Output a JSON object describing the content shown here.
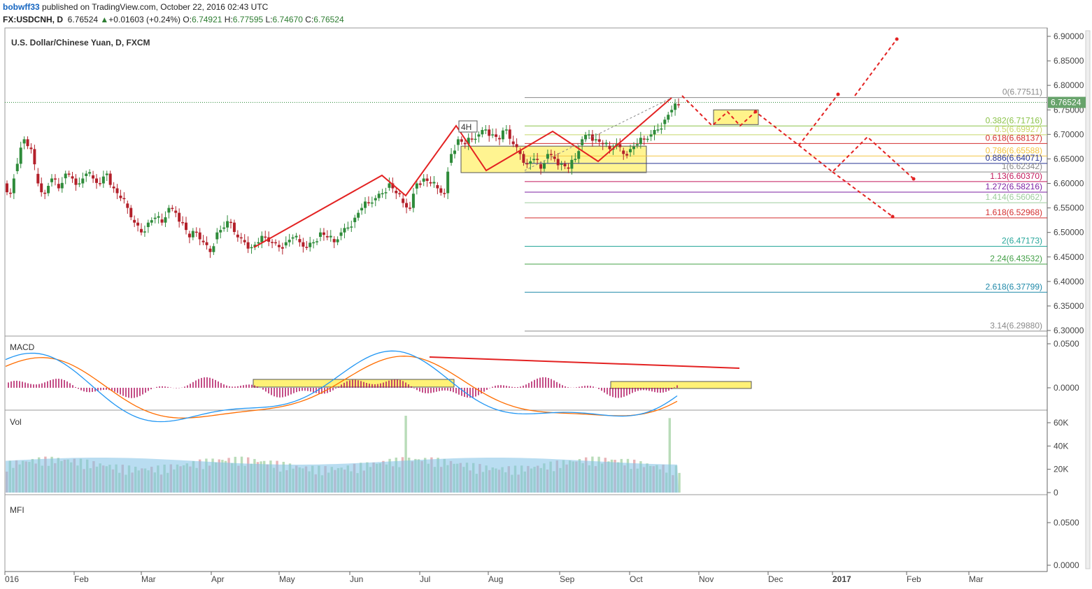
{
  "header": {
    "author": "bobwff33",
    "published": "published on TradingView.com, October 22, 2016 02:43 UTC",
    "symbol": "FX:USDCNH, D",
    "last": "6.76524",
    "change": "+0.01603 (+0.24%)",
    "open_label": "O:",
    "open": "6.74921",
    "high_label": "H:",
    "high": "6.77595",
    "low_label": "L:",
    "low": "6.74670",
    "close_label": "C:",
    "close": "6.76524"
  },
  "colors": {
    "up": "#2e8b3a",
    "down": "#b3202a",
    "axis": "#555555",
    "grid": "#e6e6e6",
    "red_line": "#e32222",
    "yellow_box": "#fff176",
    "macd": "#2196f3",
    "signal": "#ff6d00",
    "hist": "#b0125f"
  },
  "chart_data": [
    {
      "type": "candlestick",
      "title": "U.S. Dollar/Chinese Yuan, D, FXCM",
      "ylim": [
        6.29,
        6.91
      ],
      "y_ticks": [
        "6.90000",
        "6.85000",
        "6.80000",
        "6.75000",
        "6.70000",
        "6.65000",
        "6.60000",
        "6.55000",
        "6.50000",
        "6.45000",
        "6.40000",
        "6.35000",
        "6.30000"
      ],
      "x_ticks": [
        "016",
        "Feb",
        "Mar",
        "Apr",
        "May",
        "Jun",
        "Jul",
        "Aug",
        "Sep",
        "Oct",
        "Nov",
        "Dec",
        "2017",
        "Feb",
        "Mar"
      ],
      "last_price_label": "6.76524",
      "series_close": [
        6.58,
        6.64,
        6.69,
        6.67,
        6.6,
        6.58,
        6.61,
        6.59,
        6.62,
        6.61,
        6.6,
        6.62,
        6.61,
        6.6,
        6.62,
        6.59,
        6.57,
        6.55,
        6.52,
        6.5,
        6.52,
        6.53,
        6.52,
        6.55,
        6.54,
        6.52,
        6.49,
        6.5,
        6.48,
        6.46,
        6.5,
        6.51,
        6.52,
        6.49,
        6.48,
        6.47,
        6.48,
        6.49,
        6.48,
        6.47,
        6.48,
        6.49,
        6.48,
        6.47,
        6.48,
        6.5,
        6.49,
        6.48,
        6.5,
        6.51,
        6.53,
        6.55,
        6.56,
        6.57,
        6.58,
        6.6,
        6.58,
        6.56,
        6.55,
        6.6,
        6.61,
        6.6,
        6.59,
        6.58,
        6.66,
        6.69,
        6.68,
        6.69,
        6.7,
        6.71,
        6.7,
        6.69,
        6.71,
        6.68,
        6.66,
        6.64,
        6.65,
        6.63,
        6.66,
        6.65,
        6.64,
        6.63,
        6.65,
        6.69,
        6.7,
        6.69,
        6.68,
        6.67,
        6.68,
        6.66,
        6.67,
        6.68,
        6.69,
        6.7,
        6.71,
        6.73,
        6.75,
        6.76
      ],
      "fibonacci": [
        {
          "label": "0(6.77511)",
          "value": 6.77511,
          "color": "#8a8a8a"
        },
        {
          "label": "0.382(6.71716)",
          "value": 6.71716,
          "color": "#8bc34a"
        },
        {
          "label": "0.5(6.69927)",
          "value": 6.69927,
          "color": "#c8d86a"
        },
        {
          "label": "0.618(6.68137)",
          "value": 6.68137,
          "color": "#d32f2f"
        },
        {
          "label": "0.786(6.65588)",
          "value": 6.65588,
          "color": "#f4c542"
        },
        {
          "label": "0.886(6.64071)",
          "value": 6.64071,
          "color": "#283593"
        },
        {
          "label": "1(6.62342)",
          "value": 6.62342,
          "color": "#8a8a8a"
        },
        {
          "label": "1.13(6.60370)",
          "value": 6.6037,
          "color": "#c2185b"
        },
        {
          "label": "1.272(6.58216)",
          "value": 6.58216,
          "color": "#7b1fa2"
        },
        {
          "label": "1.414(6.56062)",
          "value": 6.56062,
          "color": "#9ccc9c"
        },
        {
          "label": "1.618(6.52968)",
          "value": 6.52968,
          "color": "#d32f2f"
        },
        {
          "label": "2(6.47173)",
          "value": 6.47173,
          "color": "#26a69a"
        },
        {
          "label": "2.24(6.43532)",
          "value": 6.43532,
          "color": "#43a047"
        },
        {
          "label": "2.618(6.37799)",
          "value": 6.37799,
          "color": "#1e88a8"
        },
        {
          "label": "3.14(6.29880)",
          "value": 6.2988,
          "color": "#8a8a8a"
        }
      ],
      "annotation": "4H"
    },
    {
      "type": "line",
      "title": "MACD",
      "ylim": [
        -0.04,
        0.06
      ],
      "y_ticks": [
        "0.0500",
        "0.0000"
      ]
    },
    {
      "type": "bar",
      "title": "Vol",
      "y_ticks": [
        "60K",
        "40K",
        "20K",
        "0"
      ]
    },
    {
      "type": "line",
      "title": "MFI",
      "y_ticks": [
        "0.0500",
        "0.0000"
      ]
    }
  ]
}
